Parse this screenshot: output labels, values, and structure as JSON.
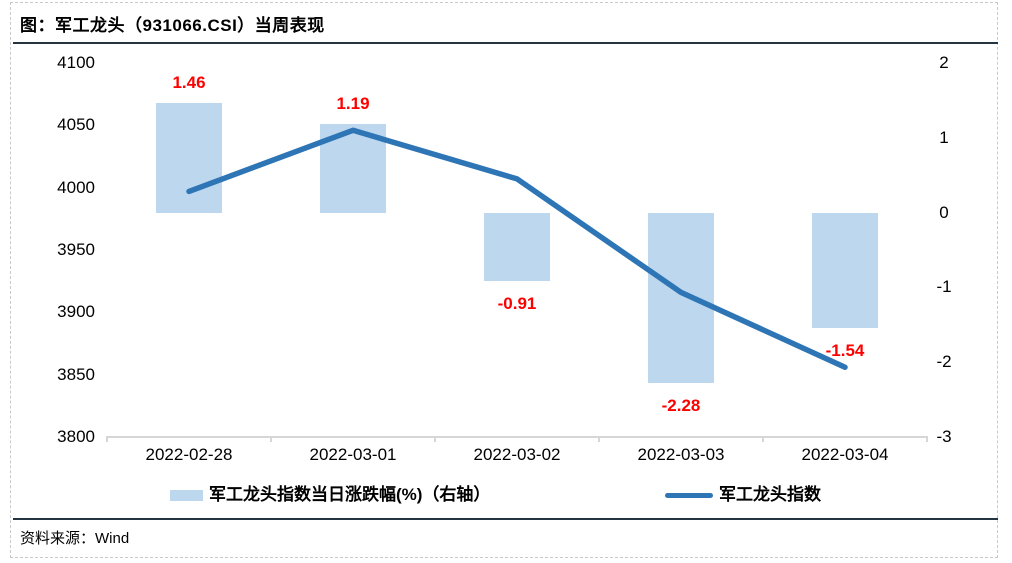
{
  "header": {
    "title": "图：军工龙头（931066.CSI）当周表现"
  },
  "footer": {
    "source": "资料来源：Wind"
  },
  "colors": {
    "bar_fill": "#BDD7EE",
    "line_stroke": "#2E75B6",
    "data_label": "#FF0000",
    "axis_line": "#D6D6D6",
    "separator": "#253441"
  },
  "chart_data": {
    "type": "combo (bar + line)",
    "title": "军工龙头（931066.CSI）当周表现",
    "categories": [
      "2022-02-28",
      "2022-03-01",
      "2022-03-02",
      "2022-03-03",
      "2022-03-04"
    ],
    "series": [
      {
        "name": "军工龙头指数当日涨跌幅(%)（右轴）",
        "type": "bar",
        "axis": "right",
        "values": [
          1.46,
          1.19,
          -0.91,
          -2.28,
          -1.54
        ],
        "data_labels": [
          "1.46",
          "1.19",
          "-0.91",
          "-2.28",
          "-1.54"
        ],
        "color": "#BDD7EE",
        "data_label_color": "#FF0000"
      },
      {
        "name": "军工龙头指数",
        "type": "line",
        "axis": "left",
        "values": [
          3997,
          4046,
          4007,
          3916,
          3856
        ],
        "color": "#2E75B6"
      }
    ],
    "left_axis": {
      "min": 3800,
      "max": 4100,
      "ticks": [
        "4100",
        "4050",
        "4000",
        "3950",
        "3900",
        "3850",
        "3800"
      ]
    },
    "right_axis": {
      "min": -3,
      "max": 2,
      "ticks": [
        "2",
        "1",
        "0",
        "-1",
        "-2",
        "-3"
      ]
    },
    "grid": false,
    "legend_position": "bottom"
  }
}
